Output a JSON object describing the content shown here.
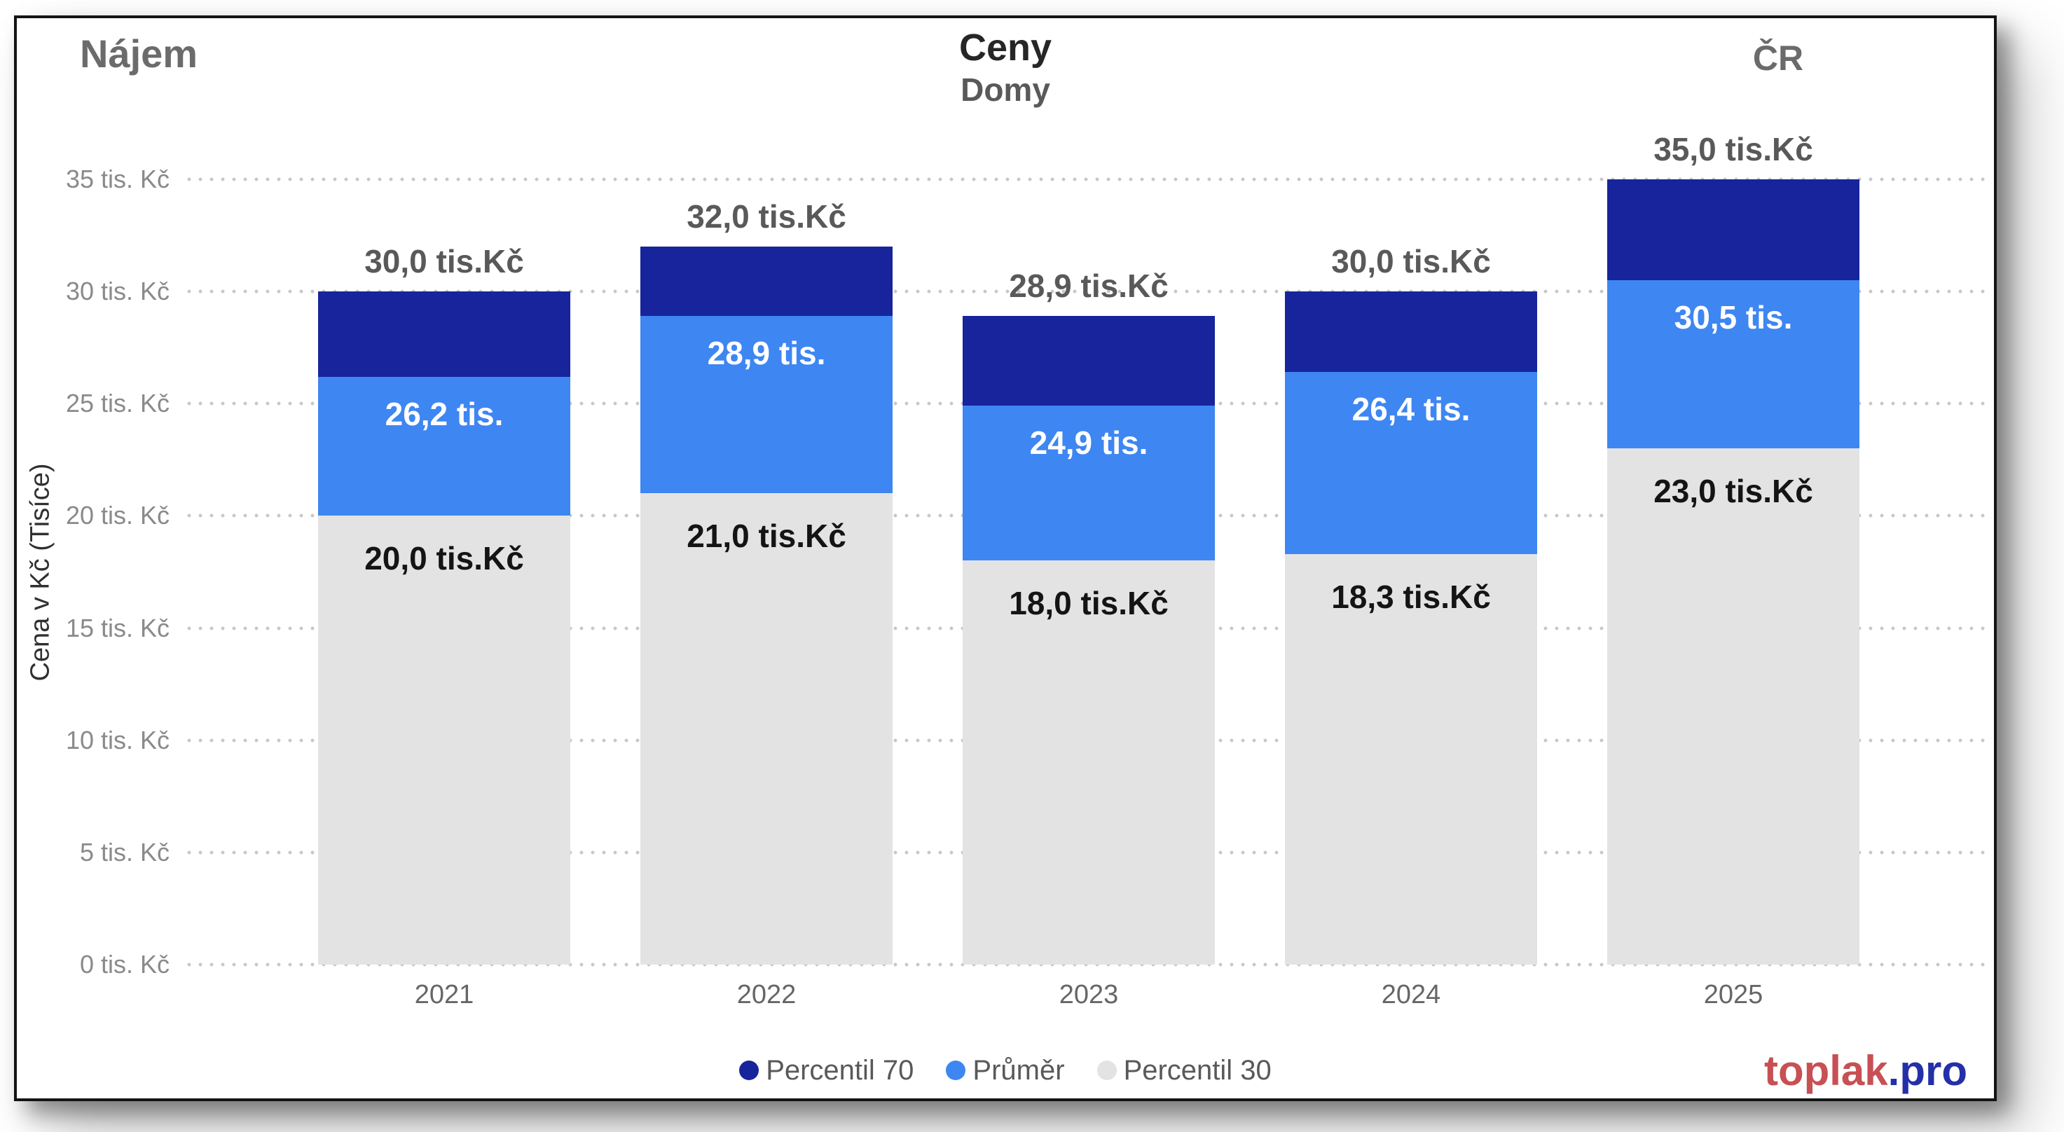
{
  "header": {
    "left_title": "Nájem",
    "center_title": "Ceny",
    "center_subtitle": "Domy",
    "right_title": "ČR"
  },
  "y_axis": {
    "title": "Cena v Kč (Tisíce)",
    "tick_labels": [
      "0 tis. Kč",
      "5 tis. Kč",
      "10 tis. Kč",
      "15 tis. Kč",
      "20 tis. Kč",
      "25 tis. Kč",
      "30 tis. Kč",
      "35 tis. Kč"
    ]
  },
  "chart_data": {
    "type": "bar",
    "subtype": "overlayed-stack",
    "title": "Ceny Domy",
    "categories": [
      "2021",
      "2022",
      "2023",
      "2024",
      "2025"
    ],
    "series": [
      {
        "name": "Percentil 70",
        "color": "#17249B",
        "values": [
          30.0,
          32.0,
          28.9,
          30.0,
          35.0
        ],
        "data_labels": [
          "30,0 tis.Kč",
          "32,0 tis.Kč",
          "28,9 tis.Kč",
          "30,0 tis.Kč",
          "35,0 tis.Kč"
        ],
        "label_placement": "outside-top",
        "label_color": "#595959"
      },
      {
        "name": "Průměr",
        "color": "#3E86F2",
        "values": [
          26.2,
          28.9,
          24.9,
          26.4,
          30.5
        ],
        "data_labels": [
          "26,2 tis.",
          "28,9 tis.",
          "24,9 tis.",
          "26,4 tis.",
          "30,5 tis."
        ],
        "label_placement": "inside-top",
        "label_color": "#ffffff"
      },
      {
        "name": "Percentil 30",
        "color": "#E4E3E3",
        "values": [
          20.0,
          21.0,
          18.0,
          18.3,
          23.0
        ],
        "data_labels": [
          "20,0 tis.Kč",
          "21,0 tis.Kč",
          "18,0 tis.Kč",
          "18,3 tis.Kč",
          "23,0 tis.Kč"
        ],
        "label_placement": "inside-top",
        "label_color": "#141414"
      }
    ],
    "ylim": [
      0,
      35
    ],
    "y_tick_step": 5,
    "ylabel": "Cena v Kč (Tisíce)",
    "grid": "dotted-horizontal",
    "legend_position": "bottom-center"
  },
  "legend": {
    "items": [
      {
        "label": "Percentil 70",
        "color": "#17249B"
      },
      {
        "label": "Průměr",
        "color": "#3E86F2"
      },
      {
        "label": "Percentil 30",
        "color": "#E4E3E3"
      }
    ]
  },
  "footer": {
    "brand_primary": "toplak",
    "brand_secondary": ".pro",
    "brand_primary_color": "#C75054",
    "brand_secondary_color": "#2330A8"
  }
}
